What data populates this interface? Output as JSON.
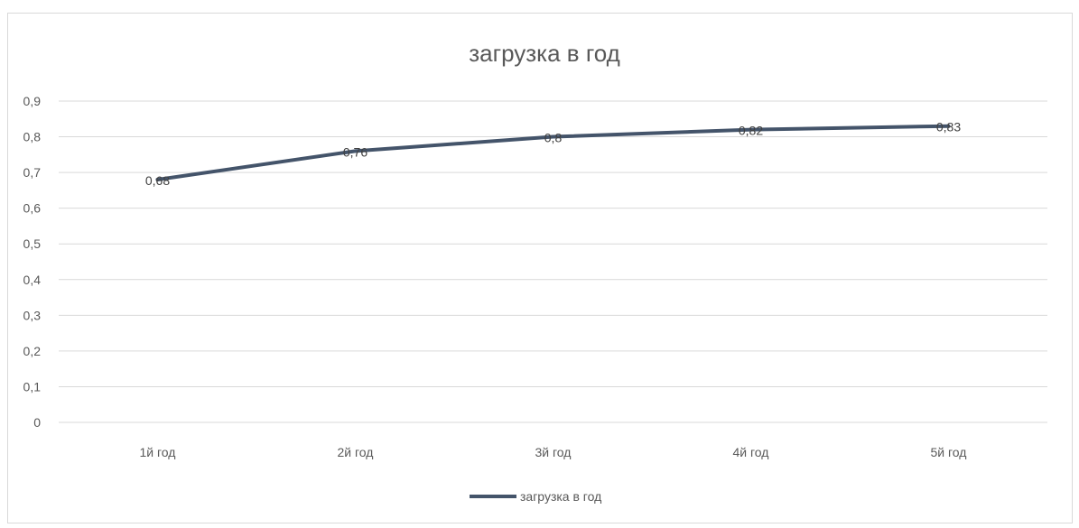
{
  "chart_data": {
    "type": "line",
    "title": "загрузка в год",
    "xlabel": "",
    "ylabel": "",
    "categories": [
      "1й год",
      "2й год",
      "3й год",
      "4й год",
      "5й год"
    ],
    "series": [
      {
        "name": "загрузка в год",
        "values": [
          0.68,
          0.76,
          0.8,
          0.82,
          0.83
        ],
        "labels": [
          "0,68",
          "0,76",
          "0,8",
          "0,82",
          "0,83"
        ],
        "color": "#44546a"
      }
    ],
    "ylim": [
      0,
      0.9
    ],
    "yticks": [
      0,
      0.1,
      0.2,
      0.3,
      0.4,
      0.5,
      0.6,
      0.7,
      0.8,
      0.9
    ],
    "ytick_labels": [
      "0",
      "0,1",
      "0,2",
      "0,3",
      "0,4",
      "0,5",
      "0,6",
      "0,7",
      "0,8",
      "0,9"
    ],
    "grid": true,
    "legend_position": "bottom"
  }
}
